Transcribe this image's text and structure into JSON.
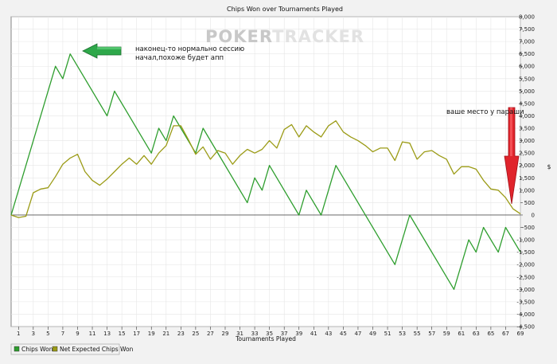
{
  "chart_data": {
    "type": "line",
    "title": "Chips Won over Tournaments Played",
    "xlabel": "Tournaments Played",
    "ylabel": "",
    "y2label": "$",
    "watermark": {
      "part1": "POKER",
      "part2": "TRACKER"
    },
    "xlim": [
      0,
      69
    ],
    "ylim": [
      -4500,
      8000
    ],
    "x_ticks": [
      1,
      3,
      5,
      7,
      9,
      11,
      13,
      15,
      17,
      19,
      21,
      23,
      25,
      27,
      29,
      31,
      33,
      35,
      37,
      39,
      41,
      43,
      45,
      47,
      49,
      51,
      53,
      55,
      57,
      59,
      61,
      63,
      65,
      67,
      69
    ],
    "y_ticks": [
      8000,
      7500,
      7000,
      6500,
      6000,
      5500,
      5000,
      4500,
      4000,
      3500,
      3000,
      2500,
      2000,
      1500,
      1000,
      500,
      0,
      -500,
      -1000,
      -1500,
      -2000,
      -2500,
      -3000,
      -3500,
      -4000,
      -4500
    ],
    "y_tick_labels": [
      "8,000",
      "7,500",
      "7,000",
      "6,500",
      "6,000",
      "5,500",
      "5,000",
      "4,500",
      "4,000",
      "3,500",
      "3,000",
      "2,500",
      "2,000",
      "1,500",
      "1,000",
      "500",
      "0",
      "-500",
      "-1,000",
      "-1,500",
      "-2,000",
      "-2,500",
      "-3,000",
      "-3,500",
      "-4,000",
      "-4,500"
    ],
    "grid": true,
    "legend_position": "bottom-left",
    "series": [
      {
        "name": "Chips Won",
        "color": "#2e9e2e",
        "points": [
          [
            0,
            0
          ],
          [
            6,
            6000
          ],
          [
            7,
            5500
          ],
          [
            8,
            6500
          ],
          [
            13,
            4000
          ],
          [
            14,
            5000
          ],
          [
            19,
            2500
          ],
          [
            20,
            3500
          ],
          [
            21,
            3000
          ],
          [
            22,
            4000
          ],
          [
            25,
            2500
          ],
          [
            26,
            3500
          ],
          [
            32,
            500
          ],
          [
            33,
            1500
          ],
          [
            34,
            1000
          ],
          [
            35,
            2000
          ],
          [
            39,
            0
          ],
          [
            40,
            1000
          ],
          [
            42,
            0
          ],
          [
            44,
            2000
          ],
          [
            52,
            -2000
          ],
          [
            54,
            0
          ],
          [
            60,
            -3000
          ],
          [
            62,
            -1000
          ],
          [
            63,
            -1500
          ],
          [
            64,
            -500
          ],
          [
            66,
            -1500
          ],
          [
            67,
            -500
          ],
          [
            69,
            -1500
          ]
        ]
      },
      {
        "name": "Net Expected Chips Won",
        "color": "#9b9b16",
        "points": [
          [
            0,
            0
          ],
          [
            1,
            -100
          ],
          [
            2,
            -50
          ],
          [
            3,
            900
          ],
          [
            4,
            1050
          ],
          [
            5,
            1100
          ],
          [
            6,
            1550
          ],
          [
            7,
            2050
          ],
          [
            8,
            2300
          ],
          [
            9,
            2450
          ],
          [
            10,
            1750
          ],
          [
            11,
            1400
          ],
          [
            12,
            1200
          ],
          [
            13,
            1450
          ],
          [
            14,
            1750
          ],
          [
            15,
            2050
          ],
          [
            16,
            2300
          ],
          [
            17,
            2050
          ],
          [
            18,
            2400
          ],
          [
            19,
            2050
          ],
          [
            20,
            2500
          ],
          [
            21,
            2800
          ],
          [
            22,
            3600
          ],
          [
            23,
            3600
          ],
          [
            24,
            3050
          ],
          [
            25,
            2450
          ],
          [
            26,
            2750
          ],
          [
            27,
            2250
          ],
          [
            28,
            2600
          ],
          [
            29,
            2500
          ],
          [
            30,
            2050
          ],
          [
            31,
            2400
          ],
          [
            32,
            2650
          ],
          [
            33,
            2500
          ],
          [
            34,
            2650
          ],
          [
            35,
            3000
          ],
          [
            36,
            2700
          ],
          [
            37,
            3450
          ],
          [
            38,
            3650
          ],
          [
            39,
            3150
          ],
          [
            40,
            3600
          ],
          [
            41,
            3350
          ],
          [
            42,
            3150
          ],
          [
            43,
            3600
          ],
          [
            44,
            3800
          ],
          [
            45,
            3350
          ],
          [
            46,
            3150
          ],
          [
            47,
            3000
          ],
          [
            48,
            2800
          ],
          [
            49,
            2550
          ],
          [
            50,
            2700
          ],
          [
            51,
            2700
          ],
          [
            52,
            2200
          ],
          [
            53,
            2950
          ],
          [
            54,
            2900
          ],
          [
            55,
            2250
          ],
          [
            56,
            2550
          ],
          [
            57,
            2600
          ],
          [
            58,
            2400
          ],
          [
            59,
            2250
          ],
          [
            60,
            1650
          ],
          [
            61,
            1950
          ],
          [
            62,
            1950
          ],
          [
            63,
            1850
          ],
          [
            64,
            1400
          ],
          [
            65,
            1050
          ],
          [
            66,
            1000
          ],
          [
            67,
            700
          ],
          [
            68,
            250
          ],
          [
            69,
            50
          ]
        ]
      }
    ],
    "annotations": [
      {
        "line1": "наконец-то нормально сессию",
        "line2": "начал,похоже будет апп"
      },
      {
        "line1": "ваше место у параши"
      }
    ]
  }
}
